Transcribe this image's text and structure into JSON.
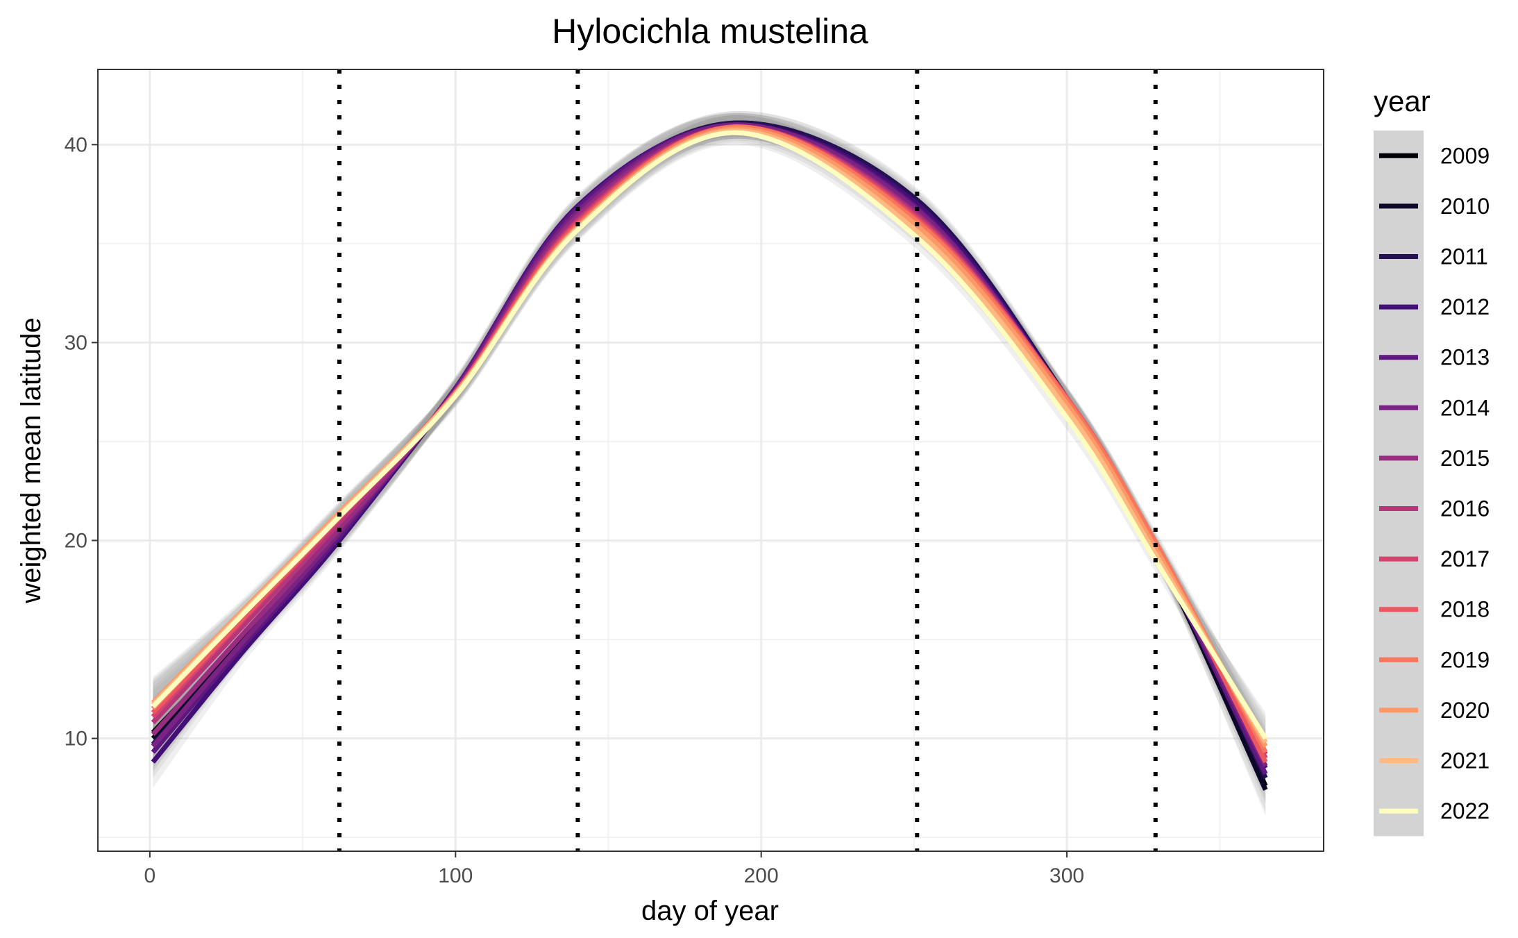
{
  "chart_data": {
    "type": "line",
    "title": "Hylocichla mustelina",
    "xlabel": "day of year",
    "ylabel": "weighted mean latitude",
    "xlim": [
      -17,
      384
    ],
    "ylim": [
      4.3,
      43.8
    ],
    "xticks": [
      0,
      100,
      200,
      300
    ],
    "yticks": [
      10,
      20,
      30,
      40
    ],
    "grid": true,
    "vlines": [
      62,
      140,
      251,
      329
    ],
    "legend": {
      "title": "year",
      "placement": "right"
    },
    "x": [
      1,
      30,
      62,
      100,
      140,
      192,
      251,
      300,
      329,
      365
    ],
    "series": [
      {
        "name": "2009",
        "color": "#000004",
        "values": [
          10.3,
          15.0,
          20.3,
          27.6,
          36.7,
          41.0,
          36.9,
          27.0,
          19.5,
          7.6
        ]
      },
      {
        "name": "2010",
        "color": "#0d0829",
        "values": [
          10.0,
          14.8,
          20.2,
          27.6,
          36.7,
          41.1,
          37.1,
          27.1,
          19.6,
          7.4
        ]
      },
      {
        "name": "2011",
        "color": "#231151",
        "values": [
          9.7,
          14.6,
          20.1,
          27.6,
          36.8,
          41.1,
          37.2,
          27.2,
          19.7,
          8.0
        ]
      },
      {
        "name": "2012",
        "color": "#410f75",
        "values": [
          8.8,
          14.3,
          20.0,
          27.7,
          36.9,
          41.0,
          37.0,
          27.1,
          19.6,
          8.5
        ]
      },
      {
        "name": "2013",
        "color": "#5f187f",
        "values": [
          9.3,
          14.6,
          20.2,
          27.7,
          36.8,
          41.0,
          36.8,
          27.0,
          19.5,
          8.2
        ]
      },
      {
        "name": "2014",
        "color": "#7b2382",
        "values": [
          9.6,
          14.8,
          20.4,
          27.6,
          36.6,
          41.0,
          36.7,
          27.1,
          19.6,
          8.6
        ]
      },
      {
        "name": "2015",
        "color": "#982d80",
        "values": [
          10.2,
          15.2,
          20.6,
          27.5,
          36.4,
          40.9,
          36.5,
          27.1,
          19.6,
          9.0
        ]
      },
      {
        "name": "2016",
        "color": "#b63679",
        "values": [
          10.8,
          15.6,
          20.9,
          27.5,
          36.2,
          40.9,
          36.4,
          27.1,
          19.6,
          9.2
        ]
      },
      {
        "name": "2017",
        "color": "#d3436e",
        "values": [
          11.1,
          15.9,
          21.1,
          27.5,
          36.1,
          40.9,
          36.3,
          27.1,
          19.7,
          9.0
        ]
      },
      {
        "name": "2018",
        "color": "#eb5760",
        "values": [
          11.3,
          16.0,
          21.2,
          27.5,
          36.0,
          40.9,
          36.2,
          27.2,
          19.8,
          8.8
        ]
      },
      {
        "name": "2019",
        "color": "#f8765c",
        "values": [
          11.5,
          16.2,
          21.3,
          27.4,
          35.9,
          40.9,
          36.1,
          27.1,
          19.9,
          9.3
        ]
      },
      {
        "name": "2020",
        "color": "#fd9869",
        "values": [
          11.8,
          16.4,
          21.4,
          27.4,
          35.8,
          40.8,
          35.9,
          26.9,
          19.6,
          9.6
        ]
      },
      {
        "name": "2021",
        "color": "#feba80",
        "values": [
          11.7,
          16.3,
          21.3,
          27.4,
          35.8,
          40.7,
          35.6,
          26.6,
          19.3,
          9.8
        ]
      },
      {
        "name": "2022",
        "color": "#fcfdbf",
        "values": [
          11.6,
          16.2,
          21.2,
          27.3,
          35.7,
          40.6,
          35.3,
          26.2,
          19.0,
          10.0
        ]
      }
    ]
  }
}
